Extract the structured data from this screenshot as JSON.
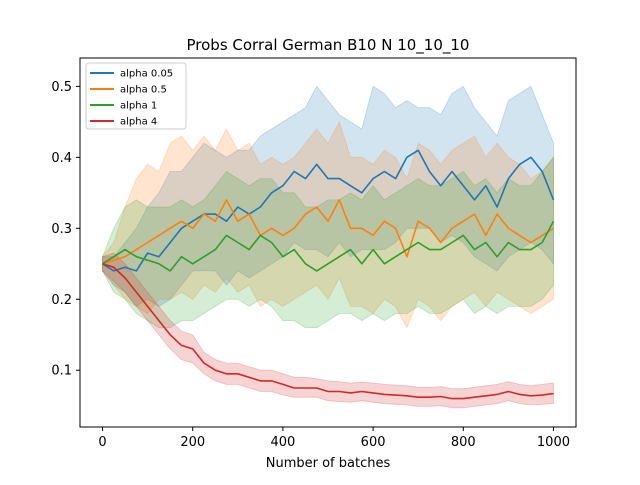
{
  "chart_data": {
    "type": "line",
    "title": "Probs Corral German B10 N 10_10_10",
    "xlabel": "Number of batches",
    "ylabel": "",
    "xlim": [
      -50,
      1050
    ],
    "ylim": [
      0.02,
      0.54
    ],
    "xticks": [
      0,
      200,
      400,
      600,
      800,
      1000
    ],
    "yticks": [
      0.1,
      0.2,
      0.3,
      0.4,
      0.5
    ],
    "grid": false,
    "legend_position": "top-left",
    "x": [
      0,
      25,
      50,
      75,
      100,
      125,
      150,
      175,
      200,
      225,
      250,
      275,
      300,
      325,
      350,
      375,
      400,
      425,
      450,
      475,
      500,
      525,
      550,
      575,
      600,
      625,
      650,
      675,
      700,
      725,
      750,
      775,
      800,
      825,
      850,
      875,
      900,
      925,
      950,
      975,
      1000
    ],
    "series": [
      {
        "name": "alpha 0.05",
        "color": "#1f77b4",
        "values": [
          0.25,
          0.24,
          0.245,
          0.24,
          0.265,
          0.26,
          0.28,
          0.3,
          0.31,
          0.32,
          0.32,
          0.31,
          0.33,
          0.32,
          0.33,
          0.35,
          0.36,
          0.38,
          0.37,
          0.39,
          0.37,
          0.37,
          0.36,
          0.35,
          0.37,
          0.38,
          0.37,
          0.4,
          0.41,
          0.38,
          0.36,
          0.38,
          0.36,
          0.34,
          0.36,
          0.33,
          0.37,
          0.39,
          0.4,
          0.38,
          0.34
        ],
        "upper": [
          0.26,
          0.26,
          0.28,
          0.3,
          0.33,
          0.35,
          0.38,
          0.38,
          0.4,
          0.42,
          0.41,
          0.4,
          0.41,
          0.41,
          0.43,
          0.44,
          0.45,
          0.46,
          0.47,
          0.5,
          0.48,
          0.46,
          0.45,
          0.44,
          0.5,
          0.49,
          0.47,
          0.48,
          0.47,
          0.47,
          0.46,
          0.49,
          0.5,
          0.47,
          0.45,
          0.43,
          0.48,
          0.49,
          0.5,
          0.46,
          0.42
        ],
        "lower": [
          0.24,
          0.22,
          0.21,
          0.19,
          0.2,
          0.19,
          0.2,
          0.22,
          0.24,
          0.24,
          0.24,
          0.22,
          0.24,
          0.23,
          0.24,
          0.25,
          0.26,
          0.28,
          0.27,
          0.27,
          0.26,
          0.28,
          0.26,
          0.27,
          0.27,
          0.27,
          0.28,
          0.3,
          0.3,
          0.3,
          0.28,
          0.29,
          0.28,
          0.26,
          0.25,
          0.24,
          0.26,
          0.27,
          0.28,
          0.27,
          0.25
        ]
      },
      {
        "name": "alpha 0.5",
        "color": "#ff7f0e",
        "values": [
          0.25,
          0.255,
          0.26,
          0.27,
          0.28,
          0.29,
          0.3,
          0.31,
          0.3,
          0.32,
          0.31,
          0.34,
          0.31,
          0.32,
          0.29,
          0.3,
          0.29,
          0.3,
          0.32,
          0.33,
          0.31,
          0.34,
          0.3,
          0.3,
          0.29,
          0.31,
          0.3,
          0.26,
          0.31,
          0.3,
          0.28,
          0.3,
          0.31,
          0.32,
          0.29,
          0.32,
          0.3,
          0.29,
          0.28,
          0.29,
          0.3
        ],
        "upper": [
          0.26,
          0.28,
          0.33,
          0.37,
          0.39,
          0.38,
          0.42,
          0.43,
          0.41,
          0.43,
          0.41,
          0.44,
          0.41,
          0.42,
          0.39,
          0.4,
          0.39,
          0.4,
          0.42,
          0.44,
          0.42,
          0.45,
          0.4,
          0.4,
          0.39,
          0.41,
          0.4,
          0.37,
          0.42,
          0.41,
          0.39,
          0.41,
          0.42,
          0.43,
          0.4,
          0.42,
          0.4,
          0.39,
          0.37,
          0.38,
          0.4
        ],
        "lower": [
          0.24,
          0.22,
          0.2,
          0.19,
          0.18,
          0.2,
          0.2,
          0.21,
          0.2,
          0.22,
          0.21,
          0.23,
          0.21,
          0.22,
          0.19,
          0.2,
          0.19,
          0.2,
          0.21,
          0.22,
          0.2,
          0.23,
          0.19,
          0.19,
          0.18,
          0.2,
          0.19,
          0.16,
          0.2,
          0.19,
          0.17,
          0.19,
          0.2,
          0.21,
          0.19,
          0.21,
          0.2,
          0.19,
          0.18,
          0.19,
          0.2
        ]
      },
      {
        "name": "alpha 1",
        "color": "#2ca02c",
        "values": [
          0.25,
          0.26,
          0.27,
          0.26,
          0.255,
          0.25,
          0.24,
          0.26,
          0.25,
          0.26,
          0.27,
          0.29,
          0.28,
          0.27,
          0.29,
          0.28,
          0.26,
          0.27,
          0.25,
          0.24,
          0.25,
          0.26,
          0.27,
          0.25,
          0.27,
          0.25,
          0.26,
          0.27,
          0.28,
          0.27,
          0.27,
          0.28,
          0.29,
          0.27,
          0.28,
          0.26,
          0.28,
          0.27,
          0.27,
          0.28,
          0.31
        ],
        "upper": [
          0.26,
          0.3,
          0.33,
          0.34,
          0.33,
          0.33,
          0.33,
          0.34,
          0.33,
          0.34,
          0.36,
          0.38,
          0.37,
          0.36,
          0.37,
          0.37,
          0.35,
          0.35,
          0.33,
          0.33,
          0.34,
          0.34,
          0.35,
          0.34,
          0.36,
          0.34,
          0.35,
          0.36,
          0.37,
          0.36,
          0.36,
          0.37,
          0.38,
          0.36,
          0.37,
          0.35,
          0.37,
          0.36,
          0.36,
          0.38,
          0.4
        ],
        "lower": [
          0.24,
          0.21,
          0.2,
          0.18,
          0.17,
          0.16,
          0.16,
          0.17,
          0.17,
          0.18,
          0.19,
          0.2,
          0.2,
          0.19,
          0.2,
          0.19,
          0.17,
          0.17,
          0.16,
          0.16,
          0.17,
          0.18,
          0.18,
          0.17,
          0.18,
          0.17,
          0.18,
          0.18,
          0.19,
          0.18,
          0.18,
          0.19,
          0.2,
          0.18,
          0.19,
          0.18,
          0.19,
          0.19,
          0.19,
          0.2,
          0.22
        ]
      },
      {
        "name": "alpha 4",
        "color": "#d62728",
        "values": [
          0.25,
          0.245,
          0.23,
          0.21,
          0.19,
          0.17,
          0.15,
          0.135,
          0.13,
          0.11,
          0.1,
          0.095,
          0.095,
          0.09,
          0.085,
          0.085,
          0.08,
          0.075,
          0.075,
          0.075,
          0.07,
          0.07,
          0.068,
          0.07,
          0.068,
          0.066,
          0.065,
          0.064,
          0.062,
          0.062,
          0.063,
          0.06,
          0.06,
          0.062,
          0.064,
          0.066,
          0.07,
          0.066,
          0.064,
          0.065,
          0.067
        ],
        "upper": [
          0.26,
          0.265,
          0.25,
          0.23,
          0.21,
          0.19,
          0.17,
          0.155,
          0.15,
          0.125,
          0.115,
          0.11,
          0.11,
          0.105,
          0.1,
          0.1,
          0.095,
          0.09,
          0.09,
          0.088,
          0.085,
          0.084,
          0.082,
          0.083,
          0.082,
          0.08,
          0.079,
          0.078,
          0.076,
          0.076,
          0.077,
          0.074,
          0.074,
          0.076,
          0.078,
          0.08,
          0.084,
          0.08,
          0.078,
          0.08,
          0.082
        ],
        "lower": [
          0.24,
          0.225,
          0.21,
          0.19,
          0.17,
          0.15,
          0.13,
          0.115,
          0.11,
          0.095,
          0.085,
          0.08,
          0.08,
          0.075,
          0.07,
          0.07,
          0.065,
          0.062,
          0.062,
          0.062,
          0.057,
          0.056,
          0.055,
          0.057,
          0.055,
          0.053,
          0.052,
          0.051,
          0.049,
          0.049,
          0.05,
          0.047,
          0.047,
          0.049,
          0.051,
          0.053,
          0.057,
          0.053,
          0.051,
          0.052,
          0.053
        ]
      }
    ]
  }
}
